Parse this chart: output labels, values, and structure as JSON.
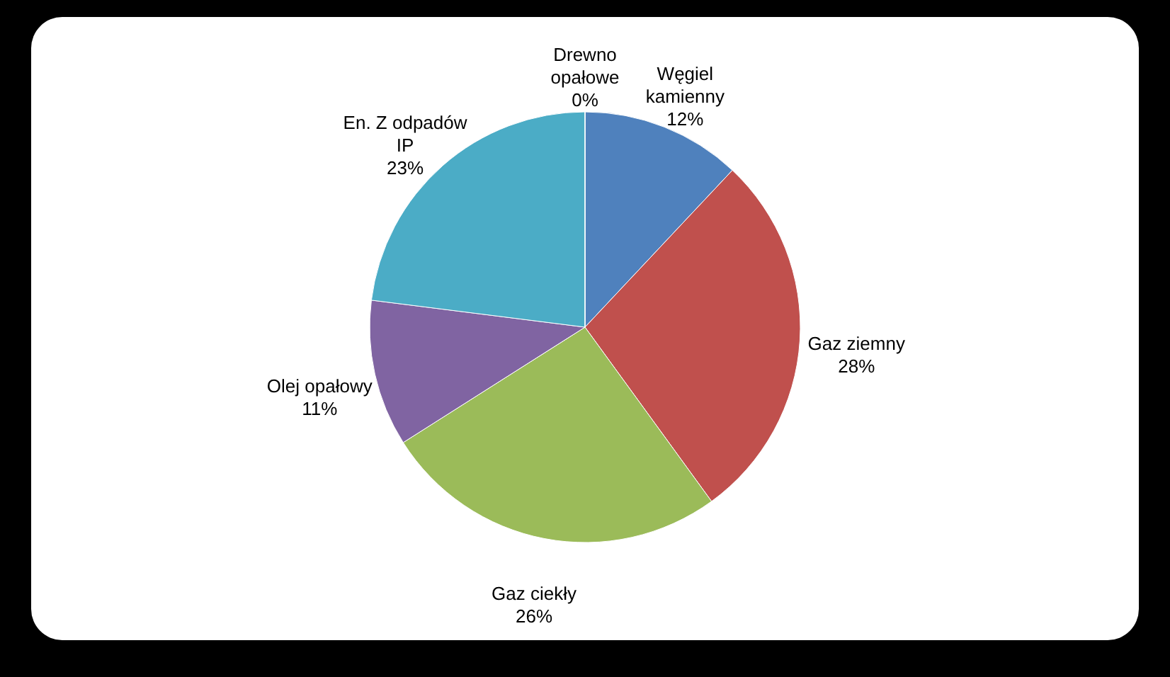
{
  "chart_data": {
    "type": "pie",
    "categories": [
      "Węgiel kamienny",
      "Gaz ziemny",
      "Gaz ciekły",
      "Olej opałowy",
      "En. Z odpadów IP",
      "Drewno opałowe"
    ],
    "values": [
      12,
      28,
      26,
      11,
      23,
      0
    ],
    "colors": [
      "#4f81bd",
      "#c0504d",
      "#9bbb59",
      "#8064a2",
      "#4bacc6",
      "#f79646"
    ],
    "value_labels": [
      "12%",
      "28%",
      "26%",
      "11%",
      "23%",
      "0%"
    ]
  }
}
